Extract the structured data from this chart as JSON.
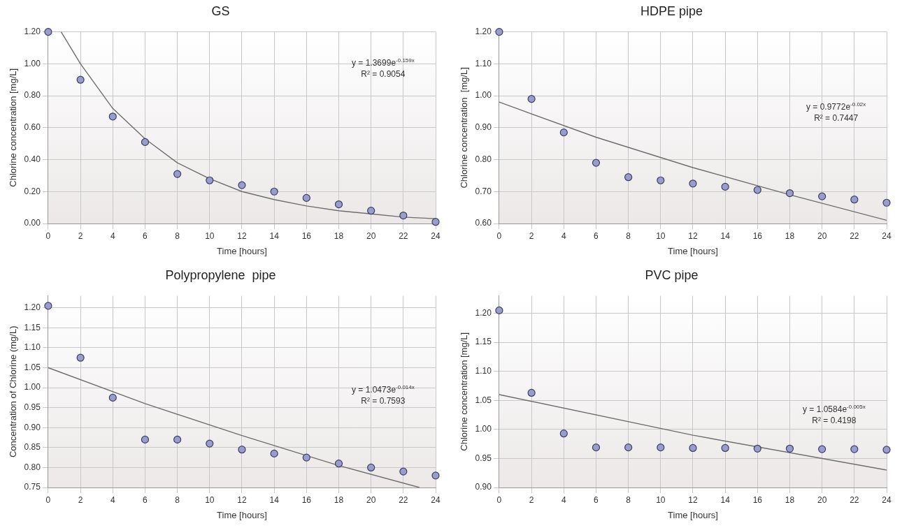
{
  "chart_data": [
    {
      "type": "scatter",
      "title": "GS",
      "xlabel": "Time [hours]",
      "ylabel": "Chlorine concentration [mg/L]",
      "x": [
        0,
        2,
        4,
        6,
        8,
        10,
        12,
        14,
        16,
        18,
        20,
        22,
        24
      ],
      "series": [
        {
          "color": "#9a9ccc",
          "marker": "circle",
          "values": [
            1.2,
            0.9,
            0.67,
            0.51,
            0.31,
            0.27,
            0.24,
            0.2,
            0.16,
            0.12,
            0.08,
            0.05,
            0.01
          ]
        },
        {
          "type": "line",
          "color": "#6e6e6e",
          "x": [
            0.8,
            2,
            4,
            6,
            8,
            10,
            12,
            14,
            16,
            18,
            20,
            22,
            24
          ],
          "values": [
            1.2,
            1.0,
            0.72,
            0.53,
            0.38,
            0.28,
            0.2,
            0.15,
            0.11,
            0.08,
            0.06,
            0.04,
            0.03
          ]
        }
      ],
      "xlim": [
        0,
        24
      ],
      "xticks": [
        0,
        2,
        4,
        6,
        8,
        10,
        12,
        14,
        16,
        18,
        20,
        22,
        24
      ],
      "ylim": [
        0,
        1.2
      ],
      "yticks": [
        {
          "value": 0,
          "label": "0.00"
        },
        {
          "value": 0.2,
          "label": "0.20"
        },
        {
          "value": 0.4,
          "label": "0.40"
        },
        {
          "value": 0.6,
          "label": "0.60"
        },
        {
          "value": 0.8,
          "label": "0.80"
        },
        {
          "value": 1,
          "label": "1.00"
        },
        {
          "value": 1.2,
          "label": "1.20"
        }
      ],
      "annotations": [
        "y = 1.3699e$^{-0.159x}$",
        "R² = 0.9054"
      ],
      "grid": true
    },
    {
      "type": "scatter",
      "title": "HDPE pipe",
      "xlabel": "Time [hours]",
      "ylabel": "Chlorine concentration  [mg/L]",
      "x": [
        0,
        2,
        4,
        6,
        8,
        10,
        12,
        14,
        16,
        18,
        20,
        22,
        24
      ],
      "series": [
        {
          "color": "#9a9ccc",
          "marker": "circle",
          "values": [
            1.2,
            0.99,
            0.885,
            0.79,
            0.745,
            0.735,
            0.725,
            0.715,
            0.705,
            0.695,
            0.685,
            0.675,
            0.665
          ]
        },
        {
          "type": "line",
          "color": "#6e6e6e",
          "x": [
            0,
            6,
            12,
            18,
            24
          ],
          "values": [
            0.98,
            0.87,
            0.775,
            0.69,
            0.61
          ]
        }
      ],
      "xlim": [
        0,
        24
      ],
      "xticks": [
        0,
        2,
        4,
        6,
        8,
        10,
        12,
        14,
        16,
        18,
        20,
        22,
        24
      ],
      "ylim": [
        0.6,
        1.2
      ],
      "yticks": [
        {
          "value": 0.6,
          "label": "0.60"
        },
        {
          "value": 0.7,
          "label": "0.70"
        },
        {
          "value": 0.8,
          "label": "0.80"
        },
        {
          "value": 0.9,
          "label": "0.90"
        },
        {
          "value": 1,
          "label": "1.00"
        },
        {
          "value": 1.1,
          "label": "1.10"
        },
        {
          "value": 1.2,
          "label": "1.20"
        }
      ],
      "annotations": [
        "y = 0.9772e$^{-0.02x}$",
        "R² = 0.7447"
      ],
      "grid": true
    },
    {
      "type": "scatter",
      "title": "Polypropylene  pipe",
      "xlabel": "Time [hours]",
      "ylabel": "Concentration of Chlorine (mg/L)",
      "x": [
        0,
        2,
        4,
        6,
        8,
        10,
        12,
        14,
        16,
        18,
        20,
        22,
        24
      ],
      "series": [
        {
          "color": "#9a9ccc",
          "marker": "circle",
          "values": [
            1.205,
            1.075,
            0.975,
            0.87,
            0.87,
            0.86,
            0.845,
            0.835,
            0.825,
            0.81,
            0.8,
            0.79,
            0.78
          ]
        },
        {
          "type": "line",
          "color": "#6e6e6e",
          "x": [
            0,
            6,
            12,
            18,
            23
          ],
          "values": [
            1.05,
            0.96,
            0.88,
            0.805,
            0.75
          ]
        }
      ],
      "xlim": [
        0,
        24
      ],
      "xticks": [
        0,
        2,
        4,
        6,
        8,
        10,
        12,
        14,
        16,
        18,
        20,
        22,
        24
      ],
      "ylim": [
        0.75,
        1.23
      ],
      "yticks": [
        {
          "value": 0.75,
          "label": "0.75"
        },
        {
          "value": 0.8,
          "label": "0.80"
        },
        {
          "value": 0.85,
          "label": "0.85"
        },
        {
          "value": 0.9,
          "label": "0.90"
        },
        {
          "value": 0.95,
          "label": "0.95"
        },
        {
          "value": 1,
          "label": "1.00"
        },
        {
          "value": 1.05,
          "label": "1.05"
        },
        {
          "value": 1.1,
          "label": "1.10"
        },
        {
          "value": 1.15,
          "label": "1.15"
        },
        {
          "value": 1.2,
          "label": "1.20"
        }
      ],
      "annotations": [
        "y = 1.0473e$^{-0.014x}$",
        "R² = 0.7593"
      ],
      "grid": true
    },
    {
      "type": "scatter",
      "title": "PVC pipe",
      "xlabel": "Time [hours]",
      "ylabel": "Chlorine concentration [mg/L]",
      "x": [
        0,
        2,
        4,
        6,
        8,
        10,
        12,
        14,
        16,
        18,
        20,
        22,
        24
      ],
      "series": [
        {
          "color": "#9a9ccc",
          "marker": "circle",
          "values": [
            1.205,
            1.063,
            0.993,
            0.969,
            0.969,
            0.969,
            0.968,
            0.968,
            0.967,
            0.967,
            0.966,
            0.966,
            0.965
          ]
        },
        {
          "type": "line",
          "color": "#6e6e6e",
          "x": [
            0,
            12,
            24
          ],
          "values": [
            1.06,
            0.99,
            0.93
          ]
        }
      ],
      "xlim": [
        0,
        24
      ],
      "xticks": [
        0,
        2,
        4,
        6,
        8,
        10,
        12,
        14,
        16,
        18,
        20,
        22,
        24
      ],
      "ylim": [
        0.9,
        1.23
      ],
      "yticks": [
        {
          "value": 0.9,
          "label": "0.90"
        },
        {
          "value": 0.95,
          "label": "0.95"
        },
        {
          "value": 1,
          "label": "1.00"
        },
        {
          "value": 1.05,
          "label": "1.05"
        },
        {
          "value": 1.1,
          "label": "1.10"
        },
        {
          "value": 1.15,
          "label": "1.15"
        },
        {
          "value": 1.2,
          "label": "1.20"
        }
      ],
      "annotations": [
        "y = 1.0584e$^{-0.005x}$",
        "R² = 0.4198"
      ],
      "grid": true
    }
  ]
}
